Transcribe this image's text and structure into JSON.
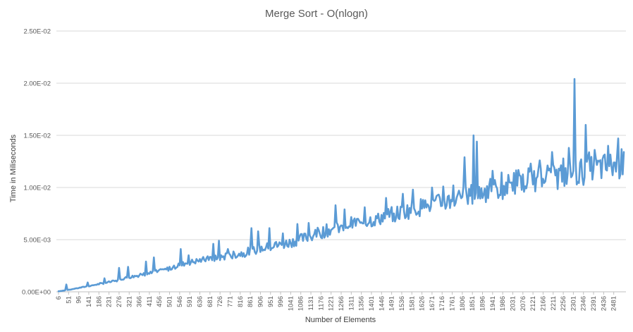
{
  "colors": {
    "series": "#5b9bd5",
    "grid": "#d9d9d9",
    "axis": "#bfbfbf",
    "text": "#595959"
  },
  "chart_data": {
    "type": "line",
    "title": "Merge Sort - O(nlogn)",
    "xlabel": "Number of Elements",
    "ylabel": "Time in Miliseconds",
    "ylim": [
      0,
      0.025
    ],
    "y_ticks": [
      0,
      0.005,
      0.01,
      0.015,
      0.02,
      0.025
    ],
    "y_tick_labels": [
      "0.00E+00",
      "5.00E-03",
      "1.00E-02",
      "1.50E-02",
      "2.00E-02",
      "2.50E-02"
    ],
    "x_range": [
      6,
      2526
    ],
    "x_step": 5,
    "x_tick_labels": [
      "6",
      "51",
      "96",
      "141",
      "186",
      "231",
      "276",
      "321",
      "366",
      "411",
      "456",
      "501",
      "546",
      "591",
      "636",
      "681",
      "726",
      "771",
      "816",
      "861",
      "906",
      "951",
      "996",
      "1041",
      "1086",
      "1131",
      "1176",
      "1221",
      "1266",
      "1311",
      "1356",
      "1401",
      "1446",
      "1491",
      "1536",
      "1581",
      "1626",
      "1671",
      "1716",
      "1761",
      "1806",
      "1851",
      "1896",
      "1941",
      "1986",
      "2031",
      "2076",
      "2121",
      "2166",
      "2211",
      "2256",
      "2301",
      "2346",
      "2391",
      "2436",
      "2481"
    ],
    "grid": true,
    "legend": "none",
    "series": [
      {
        "x": [
          6,
          56,
          106,
          156,
          206,
          256,
          306,
          356,
          406,
          456,
          506,
          556,
          606,
          656,
          706,
          756,
          806,
          856,
          906,
          956,
          1006,
          1056,
          1106,
          1156,
          1206,
          1256,
          1306,
          1356,
          1406,
          1456,
          1506,
          1556,
          1606,
          1656,
          1706,
          1756,
          1806,
          1856,
          1906,
          1956,
          2006,
          2056,
          2106,
          2156,
          2206,
          2256,
          2306,
          2356,
          2406,
          2456,
          2506,
          2526
        ],
        "y": [
          5e-05,
          0.0002,
          0.0004,
          0.0006,
          0.0008,
          0.001,
          0.0013,
          0.0015,
          0.0017,
          0.0019,
          0.0022,
          0.0026,
          0.0028,
          0.003,
          0.0031,
          0.0033,
          0.0035,
          0.0037,
          0.004,
          0.0042,
          0.0044,
          0.0047,
          0.005,
          0.0054,
          0.0057,
          0.006,
          0.0063,
          0.0065,
          0.0067,
          0.007,
          0.0072,
          0.0075,
          0.0078,
          0.008,
          0.0082,
          0.0085,
          0.0088,
          0.009,
          0.0093,
          0.0095,
          0.0098,
          0.01,
          0.0102,
          0.0104,
          0.0106,
          0.0108,
          0.011,
          0.0112,
          0.0114,
          0.0116,
          0.0118,
          0.012
        ]
      }
    ],
    "spikes": [
      {
        "x": 41,
        "y": 0.0007
      },
      {
        "x": 136,
        "y": 0.0009
      },
      {
        "x": 211,
        "y": 0.0013
      },
      {
        "x": 276,
        "y": 0.0023
      },
      {
        "x": 316,
        "y": 0.0024
      },
      {
        "x": 396,
        "y": 0.0029
      },
      {
        "x": 431,
        "y": 0.0033
      },
      {
        "x": 551,
        "y": 0.0041
      },
      {
        "x": 586,
        "y": 0.0035
      },
      {
        "x": 696,
        "y": 0.0046
      },
      {
        "x": 721,
        "y": 0.0049
      },
      {
        "x": 761,
        "y": 0.0041
      },
      {
        "x": 866,
        "y": 0.0061
      },
      {
        "x": 896,
        "y": 0.0058
      },
      {
        "x": 946,
        "y": 0.0061
      },
      {
        "x": 1006,
        "y": 0.0056
      },
      {
        "x": 1071,
        "y": 0.0065
      },
      {
        "x": 1121,
        "y": 0.0066
      },
      {
        "x": 1241,
        "y": 0.0083
      },
      {
        "x": 1281,
        "y": 0.0079
      },
      {
        "x": 1371,
        "y": 0.0081
      },
      {
        "x": 1466,
        "y": 0.009
      },
      {
        "x": 1541,
        "y": 0.0094
      },
      {
        "x": 1586,
        "y": 0.0098
      },
      {
        "x": 1671,
        "y": 0.01
      },
      {
        "x": 1721,
        "y": 0.0101
      },
      {
        "x": 1766,
        "y": 0.0102
      },
      {
        "x": 1816,
        "y": 0.0129
      },
      {
        "x": 1856,
        "y": 0.015
      },
      {
        "x": 1871,
        "y": 0.0144
      },
      {
        "x": 1941,
        "y": 0.0116
      },
      {
        "x": 2036,
        "y": 0.0114
      },
      {
        "x": 2111,
        "y": 0.0123
      },
      {
        "x": 2151,
        "y": 0.0126
      },
      {
        "x": 2206,
        "y": 0.0134
      },
      {
        "x": 2281,
        "y": 0.0138
      },
      {
        "x": 2306,
        "y": 0.0204
      },
      {
        "x": 2356,
        "y": 0.016
      },
      {
        "x": 2396,
        "y": 0.0136
      },
      {
        "x": 2456,
        "y": 0.014
      },
      {
        "x": 2501,
        "y": 0.0147
      },
      {
        "x": 2526,
        "y": 0.0134
      }
    ]
  }
}
